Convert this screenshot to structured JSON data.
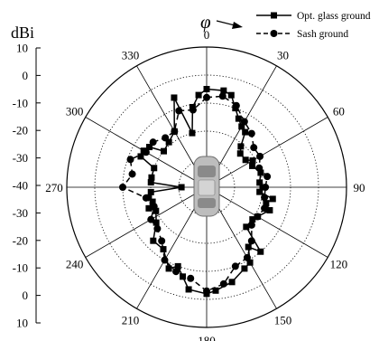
{
  "chart_data": {
    "type": "polar-line",
    "unit_label": "dBi",
    "phi_symbol": "φ",
    "radial_scale": {
      "min": -40,
      "max": 10,
      "ring_values": [
        -30,
        -20,
        -10,
        0,
        10
      ],
      "tick_labels": [
        "10",
        "0",
        "-10",
        "-20",
        "-30",
        "-40",
        "-30",
        "-20",
        "-10",
        "0",
        "10"
      ]
    },
    "angle_labels": [
      "0",
      "30",
      "60",
      "90",
      "120",
      "150",
      "180",
      "210",
      "240",
      "270",
      "300",
      "330"
    ],
    "series": [
      {
        "name": "Opt. glass ground",
        "marker": "square",
        "line": "solid",
        "color": "#000000",
        "points": [
          [
            0,
            -5
          ],
          [
            10,
            -5
          ],
          [
            15,
            -6
          ],
          [
            20,
            -10
          ],
          [
            25,
            -13
          ],
          [
            30,
            -15
          ],
          [
            35,
            -16
          ],
          [
            40,
            -21
          ],
          [
            45,
            -23
          ],
          [
            55,
            -23
          ],
          [
            60,
            -21
          ],
          [
            65,
            -22
          ],
          [
            75,
            -20
          ],
          [
            85,
            -21
          ],
          [
            90,
            -20
          ],
          [
            95,
            -21
          ],
          [
            100,
            -16
          ],
          [
            105,
            -18
          ],
          [
            110,
            -16
          ],
          [
            120,
            -19
          ],
          [
            125,
            -20
          ],
          [
            135,
            -20
          ],
          [
            140,
            -10
          ],
          [
            145,
            -14
          ],
          [
            150,
            -9
          ],
          [
            155,
            -8
          ],
          [
            165,
            -5
          ],
          [
            175,
            -3
          ],
          [
            180,
            -2
          ],
          [
            190,
            -3
          ],
          [
            195,
            -7
          ],
          [
            200,
            -10
          ],
          [
            205,
            -8
          ],
          [
            215,
            -13
          ],
          [
            225,
            -13
          ],
          [
            235,
            -18
          ],
          [
            245,
            -20
          ],
          [
            250,
            -18
          ],
          [
            255,
            -20
          ],
          [
            260,
            -19
          ],
          [
            265,
            -20
          ],
          [
            270,
            -31
          ],
          [
            275,
            -20
          ],
          [
            280,
            -20
          ],
          [
            290,
            -20
          ],
          [
            295,
            -14
          ],
          [
            300,
            -14
          ],
          [
            305,
            -15
          ],
          [
            310,
            -20
          ],
          [
            320,
            -19
          ],
          [
            330,
            -17
          ],
          [
            340,
            -6
          ],
          [
            345,
            -20
          ],
          [
            350,
            -11
          ],
          [
            355,
            -7
          ]
        ]
      },
      {
        "name": "Sash ground",
        "marker": "circle",
        "line": "dashed",
        "color": "#000000",
        "points": [
          [
            0,
            -8
          ],
          [
            10,
            -7
          ],
          [
            20,
            -9
          ],
          [
            30,
            -13
          ],
          [
            40,
            -15
          ],
          [
            50,
            -18
          ],
          [
            60,
            -18
          ],
          [
            70,
            -20
          ],
          [
            80,
            -18
          ],
          [
            90,
            -19
          ],
          [
            100,
            -19
          ],
          [
            110,
            -18
          ],
          [
            120,
            -19
          ],
          [
            130,
            -19
          ],
          [
            140,
            -15
          ],
          [
            150,
            -11
          ],
          [
            160,
            -10
          ],
          [
            170,
            -5
          ],
          [
            180,
            -3
          ],
          [
            190,
            -7
          ],
          [
            200,
            -8
          ],
          [
            210,
            -10
          ],
          [
            220,
            -15
          ],
          [
            230,
            -17
          ],
          [
            240,
            -17
          ],
          [
            250,
            -20
          ],
          [
            260,
            -18
          ],
          [
            270,
            -10
          ],
          [
            280,
            -13
          ],
          [
            290,
            -11
          ],
          [
            300,
            -15
          ],
          [
            310,
            -15
          ],
          [
            320,
            -17
          ],
          [
            330,
            -17
          ],
          [
            340,
            -11
          ],
          [
            350,
            -12
          ]
        ]
      }
    ]
  }
}
